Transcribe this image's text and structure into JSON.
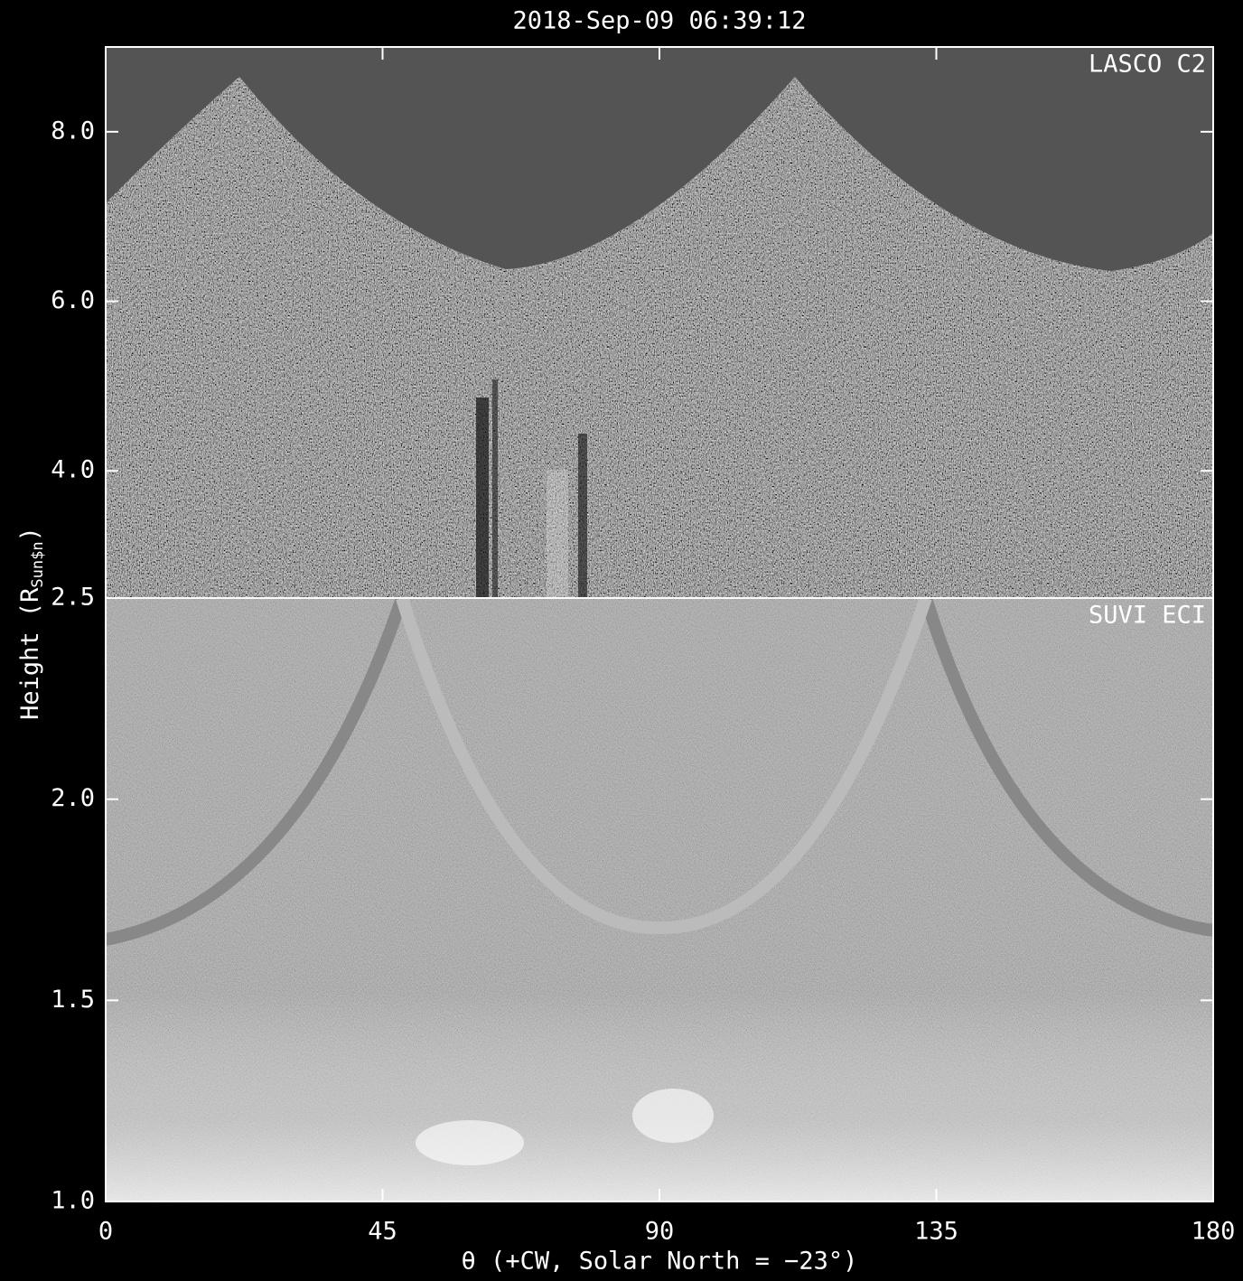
{
  "chart_data": {
    "type": "image",
    "title": "2018-Sep-09 06:39:12",
    "x_label": "θ (+CW, Solar North = −23°)",
    "y_label": {
      "main": "Height (R",
      "sub": "Sun$n",
      "close": ")"
    },
    "xlim": [
      0,
      180
    ],
    "xticks": [
      0,
      45,
      90,
      135,
      180
    ],
    "panels": [
      {
        "label": "LASCO C2",
        "ylim": [
          2.5,
          9.0
        ],
        "yticks": [
          {
            "value": 4,
            "label": "4.0"
          },
          {
            "value": 6,
            "label": "6.0"
          },
          {
            "value": 8,
            "label": "8.0"
          }
        ]
      },
      {
        "label": "SUVI ECI",
        "ylim": [
          1.0,
          2.5
        ],
        "yticks": [
          {
            "value": 1,
            "label": "1.0"
          },
          1.5,
          {
            "value": 2,
            "label": "2.0"
          },
          2.5
        ]
      }
    ]
  }
}
